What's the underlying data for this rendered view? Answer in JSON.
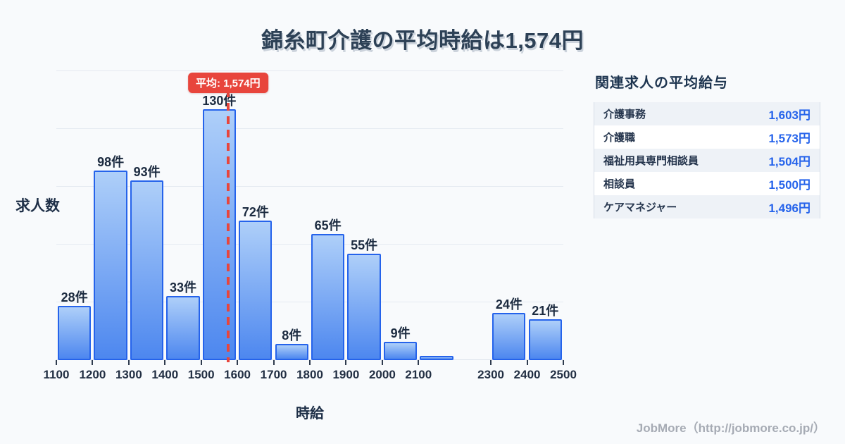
{
  "title": "錦糸町介護の平均時給は1,574円",
  "chart_data": {
    "type": "bar",
    "title": "錦糸町介護の平均時給は1,574円",
    "xlabel": "時給",
    "ylabel": "求人数",
    "x_min": 1100,
    "x_max": 2500,
    "ylim": [
      0,
      150
    ],
    "grid": true,
    "gridline_values": [
      30,
      60,
      90,
      120,
      150
    ],
    "x_ticks": [
      1100,
      1200,
      1300,
      1400,
      1500,
      1600,
      1700,
      1800,
      1900,
      2000,
      2100,
      2300,
      2400,
      2500
    ],
    "bins": [
      {
        "start": 1100,
        "end": 1200,
        "value": 28,
        "label": "28件"
      },
      {
        "start": 1200,
        "end": 1300,
        "value": 98,
        "label": "98件"
      },
      {
        "start": 1300,
        "end": 1400,
        "value": 93,
        "label": "93件"
      },
      {
        "start": 1400,
        "end": 1500,
        "value": 33,
        "label": "33件"
      },
      {
        "start": 1500,
        "end": 1600,
        "value": 130,
        "label": "130件"
      },
      {
        "start": 1600,
        "end": 1700,
        "value": 72,
        "label": "72件"
      },
      {
        "start": 1700,
        "end": 1800,
        "value": 8,
        "label": "8件"
      },
      {
        "start": 1800,
        "end": 1900,
        "value": 65,
        "label": "65件"
      },
      {
        "start": 1900,
        "end": 2000,
        "value": 55,
        "label": "55件"
      },
      {
        "start": 2000,
        "end": 2100,
        "value": 9,
        "label": "9件"
      },
      {
        "start": 2100,
        "end": 2200,
        "value": 2,
        "label": ""
      },
      {
        "start": 2300,
        "end": 2400,
        "value": 24,
        "label": "24件"
      },
      {
        "start": 2400,
        "end": 2500,
        "value": 21,
        "label": "21件"
      }
    ],
    "average_line": {
      "value": 1574,
      "label": "平均: 1,574円"
    }
  },
  "panel": {
    "title": "関連求人の平均給与",
    "rows": [
      {
        "name": "介護事務",
        "value": "1,603円"
      },
      {
        "name": "介護職",
        "value": "1,573円"
      },
      {
        "name": "福祉用具専門相談員",
        "value": "1,504円"
      },
      {
        "name": "相談員",
        "value": "1,500円"
      },
      {
        "name": "ケアマネジャー",
        "value": "1,496円"
      }
    ]
  },
  "footer": {
    "credit": "JobMore（http://jobmore.co.jp/）"
  },
  "colors": {
    "background": "#f8fafc",
    "heading": "#2d4156",
    "bar_border": "#2563eb",
    "bar_gradient_top": "#aecff9",
    "bar_gradient_bottom": "#4d87ef",
    "average_red": "#e8453c",
    "value_blue": "#2563eb",
    "grid": "#e5eaf1",
    "footer_gray": "#a6abb4"
  }
}
